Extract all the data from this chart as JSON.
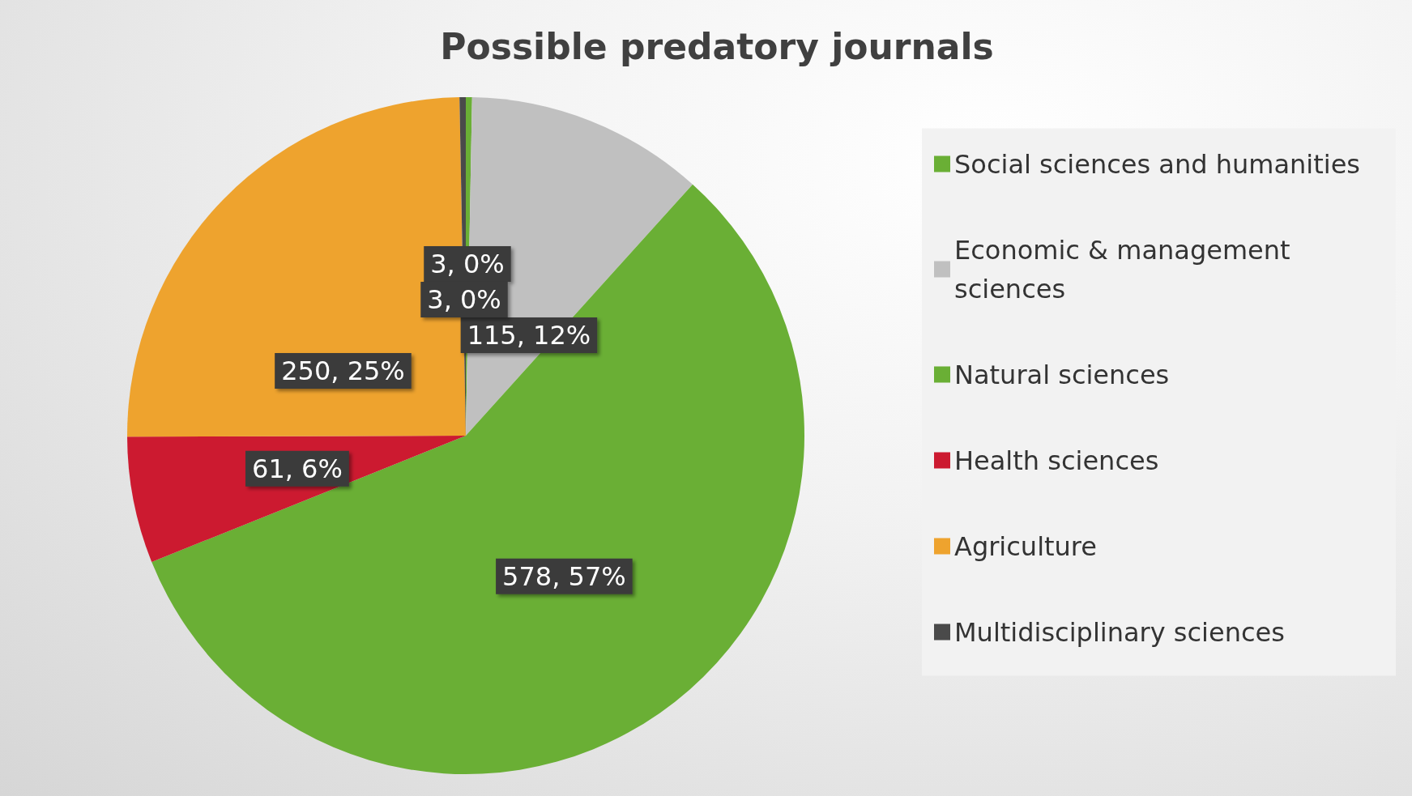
{
  "chart_data": {
    "type": "pie",
    "title": "Possible predatory journals",
    "categories": [
      "Social sciences and humanities",
      "Economic & management sciences",
      "Natural sciences",
      "Health sciences",
      "Agriculture",
      "Multidisciplinary sciences"
    ],
    "values": [
      3,
      115,
      578,
      61,
      250,
      3
    ],
    "colors": [
      "#6aaf35",
      "#c0c0c0",
      "#6aaf35",
      "#cc1a30",
      "#eea32e",
      "#4a4a4a"
    ],
    "value_labels": [
      "3, 0%",
      "115, 12%",
      "578, 57%",
      "61, 6%",
      "250, 25%",
      "3, 0%"
    ],
    "legend": "right"
  }
}
